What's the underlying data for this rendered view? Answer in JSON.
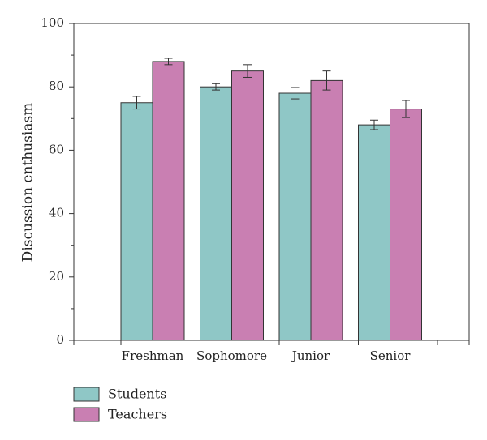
{
  "chart_data": {
    "type": "bar",
    "title": "",
    "xlabel": "",
    "ylabel": "Discussion enthusiasm",
    "ylim": [
      0,
      100
    ],
    "yticks": [
      0,
      20,
      40,
      60,
      80,
      100
    ],
    "categories": [
      "Freshman",
      "Sophomore",
      "Junior",
      "Senior"
    ],
    "series": [
      {
        "name": "Students",
        "color": "#8fc7c6",
        "values": [
          75,
          80,
          78,
          68
        ],
        "errors": [
          2,
          1,
          1.8,
          1.5
        ]
      },
      {
        "name": "Teachers",
        "color": "#c97fb2",
        "values": [
          88,
          85,
          82,
          73
        ],
        "errors": [
          1,
          2,
          3,
          2.7
        ]
      }
    ],
    "grid": false,
    "legend_position": "bottom-left"
  }
}
